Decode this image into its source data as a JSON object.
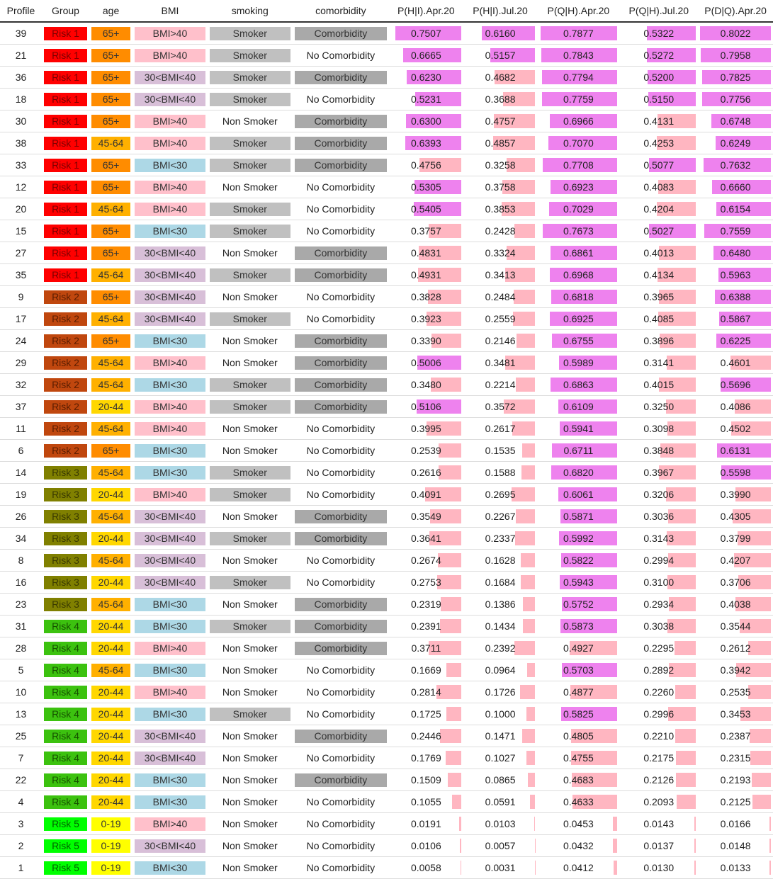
{
  "headers": [
    "Profile",
    "Group",
    "age",
    "BMI",
    "smoking",
    "comorbidity",
    "P(H|I).Apr.20",
    "P(H|I).Jul.20",
    "P(Q|H).Apr.20",
    "P(Q|H).Jul.20",
    "P(D|Q).Apr.20"
  ],
  "colors": {
    "Risk 1": {
      "bg": "#ff0000",
      "fg": "#7a0000"
    },
    "Risk 2": {
      "bg": "#c0470e",
      "fg": "#5a1d00"
    },
    "Risk 3": {
      "bg": "#808000",
      "fg": "#3a3a00"
    },
    "Risk 4": {
      "bg": "#3cc20f",
      "fg": "#155000"
    },
    "Risk 5": {
      "bg": "#00ff00",
      "fg": "#006000"
    },
    "65+": {
      "bg": "#ff8c00",
      "fg": "#333333"
    },
    "45-64": {
      "bg": "#ffb000",
      "fg": "#333333"
    },
    "20-44": {
      "bg": "#ffd700",
      "fg": "#333333"
    },
    "0-19": {
      "bg": "#ffff00",
      "fg": "#333333"
    },
    "BMI>40": {
      "bg": "#ffc0cb",
      "fg": "#333333"
    },
    "30<BMI<40": {
      "bg": "#d8bfd8",
      "fg": "#333333"
    },
    "BMI<30": {
      "bg": "#add8e6",
      "fg": "#333333"
    },
    "Smoker": {
      "bg": "#c0c0c0",
      "fg": "#333333"
    },
    "Comorbidity": {
      "bg": "#a9a9a9",
      "fg": "#333333"
    },
    "bar_high": "#ee82ee",
    "bar_low": "#ffb6c1"
  },
  "bar_max": [
    0.8022,
    0.8022,
    0.8022,
    0.8022,
    0.8022
  ],
  "bar_threshold": 0.5,
  "rows": [
    {
      "profile": "39",
      "group": "Risk 1",
      "age": "65+",
      "bmi": "BMI>40",
      "smoking": "Smoker",
      "comorbidity": "Comorbidity",
      "vals": [
        "0.7507",
        "0.6160",
        "0.7877",
        "0.5322",
        "0.8022"
      ]
    },
    {
      "profile": "21",
      "group": "Risk 1",
      "age": "65+",
      "bmi": "BMI>40",
      "smoking": "Smoker",
      "comorbidity": "No Comorbidity",
      "vals": [
        "0.6665",
        "0.5157",
        "0.7843",
        "0.5272",
        "0.7958"
      ]
    },
    {
      "profile": "36",
      "group": "Risk 1",
      "age": "65+",
      "bmi": "30<BMI<40",
      "smoking": "Smoker",
      "comorbidity": "Comorbidity",
      "vals": [
        "0.6230",
        "0.4682",
        "0.7794",
        "0.5200",
        "0.7825"
      ]
    },
    {
      "profile": "18",
      "group": "Risk 1",
      "age": "65+",
      "bmi": "30<BMI<40",
      "smoking": "Smoker",
      "comorbidity": "No Comorbidity",
      "vals": [
        "0.5231",
        "0.3688",
        "0.7759",
        "0.5150",
        "0.7756"
      ]
    },
    {
      "profile": "30",
      "group": "Risk 1",
      "age": "65+",
      "bmi": "BMI>40",
      "smoking": "Non Smoker",
      "comorbidity": "Comorbidity",
      "vals": [
        "0.6300",
        "0.4757",
        "0.6966",
        "0.4131",
        "0.6748"
      ]
    },
    {
      "profile": "38",
      "group": "Risk 1",
      "age": "45-64",
      "bmi": "BMI>40",
      "smoking": "Smoker",
      "comorbidity": "Comorbidity",
      "vals": [
        "0.6393",
        "0.4857",
        "0.7070",
        "0.4253",
        "0.6249"
      ]
    },
    {
      "profile": "33",
      "group": "Risk 1",
      "age": "65+",
      "bmi": "BMI<30",
      "smoking": "Smoker",
      "comorbidity": "Comorbidity",
      "vals": [
        "0.4756",
        "0.3258",
        "0.7708",
        "0.5077",
        "0.7632"
      ]
    },
    {
      "profile": "12",
      "group": "Risk 1",
      "age": "65+",
      "bmi": "BMI>40",
      "smoking": "Non Smoker",
      "comorbidity": "No Comorbidity",
      "vals": [
        "0.5305",
        "0.3758",
        "0.6923",
        "0.4083",
        "0.6660"
      ]
    },
    {
      "profile": "20",
      "group": "Risk 1",
      "age": "45-64",
      "bmi": "BMI>40",
      "smoking": "Smoker",
      "comorbidity": "No Comorbidity",
      "vals": [
        "0.5405",
        "0.3853",
        "0.7029",
        "0.4204",
        "0.6154"
      ]
    },
    {
      "profile": "15",
      "group": "Risk 1",
      "age": "65+",
      "bmi": "BMI<30",
      "smoking": "Smoker",
      "comorbidity": "No Comorbidity",
      "vals": [
        "0.3757",
        "0.2428",
        "0.7673",
        "0.5027",
        "0.7559"
      ]
    },
    {
      "profile": "27",
      "group": "Risk 1",
      "age": "65+",
      "bmi": "30<BMI<40",
      "smoking": "Non Smoker",
      "comorbidity": "Comorbidity",
      "vals": [
        "0.4831",
        "0.3324",
        "0.6861",
        "0.4013",
        "0.6480"
      ]
    },
    {
      "profile": "35",
      "group": "Risk 1",
      "age": "45-64",
      "bmi": "30<BMI<40",
      "smoking": "Smoker",
      "comorbidity": "Comorbidity",
      "vals": [
        "0.4931",
        "0.3413",
        "0.6968",
        "0.4134",
        "0.5963"
      ]
    },
    {
      "profile": "9",
      "group": "Risk 2",
      "age": "65+",
      "bmi": "30<BMI<40",
      "smoking": "Non Smoker",
      "comorbidity": "No Comorbidity",
      "vals": [
        "0.3828",
        "0.2484",
        "0.6818",
        "0.3965",
        "0.6388"
      ]
    },
    {
      "profile": "17",
      "group": "Risk 2",
      "age": "45-64",
      "bmi": "30<BMI<40",
      "smoking": "Smoker",
      "comorbidity": "No Comorbidity",
      "vals": [
        "0.3923",
        "0.2559",
        "0.6925",
        "0.4085",
        "0.5867"
      ]
    },
    {
      "profile": "24",
      "group": "Risk 2",
      "age": "65+",
      "bmi": "BMI<30",
      "smoking": "Non Smoker",
      "comorbidity": "Comorbidity",
      "vals": [
        "0.3390",
        "0.2146",
        "0.6755",
        "0.3896",
        "0.6225"
      ]
    },
    {
      "profile": "29",
      "group": "Risk 2",
      "age": "45-64",
      "bmi": "BMI>40",
      "smoking": "Non Smoker",
      "comorbidity": "Comorbidity",
      "vals": [
        "0.5006",
        "0.3481",
        "0.5989",
        "0.3141",
        "0.4601"
      ]
    },
    {
      "profile": "32",
      "group": "Risk 2",
      "age": "45-64",
      "bmi": "BMI<30",
      "smoking": "Smoker",
      "comorbidity": "Comorbidity",
      "vals": [
        "0.3480",
        "0.2214",
        "0.6863",
        "0.4015",
        "0.5696"
      ]
    },
    {
      "profile": "37",
      "group": "Risk 2",
      "age": "20-44",
      "bmi": "BMI>40",
      "smoking": "Smoker",
      "comorbidity": "Comorbidity",
      "vals": [
        "0.5106",
        "0.3572",
        "0.6109",
        "0.3250",
        "0.4086"
      ]
    },
    {
      "profile": "11",
      "group": "Risk 2",
      "age": "45-64",
      "bmi": "BMI>40",
      "smoking": "Non Smoker",
      "comorbidity": "No Comorbidity",
      "vals": [
        "0.3995",
        "0.2617",
        "0.5941",
        "0.3098",
        "0.4502"
      ]
    },
    {
      "profile": "6",
      "group": "Risk 2",
      "age": "65+",
      "bmi": "BMI<30",
      "smoking": "Non Smoker",
      "comorbidity": "No Comorbidity",
      "vals": [
        "0.2539",
        "0.1535",
        "0.6711",
        "0.3848",
        "0.6131"
      ]
    },
    {
      "profile": "14",
      "group": "Risk 3",
      "age": "45-64",
      "bmi": "BMI<30",
      "smoking": "Smoker",
      "comorbidity": "No Comorbidity",
      "vals": [
        "0.2616",
        "0.1588",
        "0.6820",
        "0.3967",
        "0.5598"
      ]
    },
    {
      "profile": "19",
      "group": "Risk 3",
      "age": "20-44",
      "bmi": "BMI>40",
      "smoking": "Smoker",
      "comorbidity": "No Comorbidity",
      "vals": [
        "0.4091",
        "0.2695",
        "0.6061",
        "0.3206",
        "0.3990"
      ]
    },
    {
      "profile": "26",
      "group": "Risk 3",
      "age": "45-64",
      "bmi": "30<BMI<40",
      "smoking": "Non Smoker",
      "comorbidity": "Comorbidity",
      "vals": [
        "0.3549",
        "0.2267",
        "0.5871",
        "0.3036",
        "0.4305"
      ]
    },
    {
      "profile": "34",
      "group": "Risk 3",
      "age": "20-44",
      "bmi": "30<BMI<40",
      "smoking": "Smoker",
      "comorbidity": "Comorbidity",
      "vals": [
        "0.3641",
        "0.2337",
        "0.5992",
        "0.3143",
        "0.3799"
      ]
    },
    {
      "profile": "8",
      "group": "Risk 3",
      "age": "45-64",
      "bmi": "30<BMI<40",
      "smoking": "Non Smoker",
      "comorbidity": "No Comorbidity",
      "vals": [
        "0.2674",
        "0.1628",
        "0.5822",
        "0.2994",
        "0.4207"
      ]
    },
    {
      "profile": "16",
      "group": "Risk 3",
      "age": "20-44",
      "bmi": "30<BMI<40",
      "smoking": "Smoker",
      "comorbidity": "No Comorbidity",
      "vals": [
        "0.2753",
        "0.1684",
        "0.5943",
        "0.3100",
        "0.3706"
      ]
    },
    {
      "profile": "23",
      "group": "Risk 3",
      "age": "45-64",
      "bmi": "BMI<30",
      "smoking": "Non Smoker",
      "comorbidity": "Comorbidity",
      "vals": [
        "0.2319",
        "0.1386",
        "0.5752",
        "0.2934",
        "0.4038"
      ]
    },
    {
      "profile": "31",
      "group": "Risk 4",
      "age": "20-44",
      "bmi": "BMI<30",
      "smoking": "Smoker",
      "comorbidity": "Comorbidity",
      "vals": [
        "0.2391",
        "0.1434",
        "0.5873",
        "0.3038",
        "0.3544"
      ]
    },
    {
      "profile": "28",
      "group": "Risk 4",
      "age": "20-44",
      "bmi": "BMI>40",
      "smoking": "Non Smoker",
      "comorbidity": "Comorbidity",
      "vals": [
        "0.3711",
        "0.2392",
        "0.4927",
        "0.2295",
        "0.2612"
      ]
    },
    {
      "profile": "5",
      "group": "Risk 4",
      "age": "45-64",
      "bmi": "BMI<30",
      "smoking": "Non Smoker",
      "comorbidity": "No Comorbidity",
      "vals": [
        "0.1669",
        "0.0964",
        "0.5703",
        "0.2892",
        "0.3942"
      ]
    },
    {
      "profile": "10",
      "group": "Risk 4",
      "age": "20-44",
      "bmi": "BMI>40",
      "smoking": "Non Smoker",
      "comorbidity": "No Comorbidity",
      "vals": [
        "0.2814",
        "0.1726",
        "0.4877",
        "0.2260",
        "0.2535"
      ]
    },
    {
      "profile": "13",
      "group": "Risk 4",
      "age": "20-44",
      "bmi": "BMI<30",
      "smoking": "Smoker",
      "comorbidity": "No Comorbidity",
      "vals": [
        "0.1725",
        "0.1000",
        "0.5825",
        "0.2996",
        "0.3453"
      ]
    },
    {
      "profile": "25",
      "group": "Risk 4",
      "age": "20-44",
      "bmi": "30<BMI<40",
      "smoking": "Non Smoker",
      "comorbidity": "Comorbidity",
      "vals": [
        "0.2446",
        "0.1471",
        "0.4805",
        "0.2210",
        "0.2387"
      ]
    },
    {
      "profile": "7",
      "group": "Risk 4",
      "age": "20-44",
      "bmi": "30<BMI<40",
      "smoking": "Non Smoker",
      "comorbidity": "No Comorbidity",
      "vals": [
        "0.1769",
        "0.1027",
        "0.4755",
        "0.2175",
        "0.2315"
      ]
    },
    {
      "profile": "22",
      "group": "Risk 4",
      "age": "20-44",
      "bmi": "BMI<30",
      "smoking": "Non Smoker",
      "comorbidity": "Comorbidity",
      "vals": [
        "0.1509",
        "0.0865",
        "0.4683",
        "0.2126",
        "0.2193"
      ]
    },
    {
      "profile": "4",
      "group": "Risk 4",
      "age": "20-44",
      "bmi": "BMI<30",
      "smoking": "Non Smoker",
      "comorbidity": "No Comorbidity",
      "vals": [
        "0.1055",
        "0.0591",
        "0.4633",
        "0.2093",
        "0.2125"
      ]
    },
    {
      "profile": "3",
      "group": "Risk 5",
      "age": "0-19",
      "bmi": "BMI>40",
      "smoking": "Non Smoker",
      "comorbidity": "No Comorbidity",
      "vals": [
        "0.0191",
        "0.0103",
        "0.0453",
        "0.0143",
        "0.0166"
      ]
    },
    {
      "profile": "2",
      "group": "Risk 5",
      "age": "0-19",
      "bmi": "30<BMI<40",
      "smoking": "Non Smoker",
      "comorbidity": "No Comorbidity",
      "vals": [
        "0.0106",
        "0.0057",
        "0.0432",
        "0.0137",
        "0.0148"
      ]
    },
    {
      "profile": "1",
      "group": "Risk 5",
      "age": "0-19",
      "bmi": "BMI<30",
      "smoking": "Non Smoker",
      "comorbidity": "No Comorbidity",
      "vals": [
        "0.0058",
        "0.0031",
        "0.0412",
        "0.0130",
        "0.0133"
      ]
    }
  ]
}
